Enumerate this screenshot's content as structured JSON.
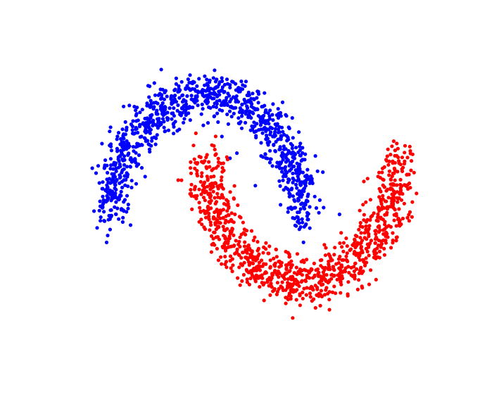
{
  "chart_data": {
    "type": "scatter",
    "title": "",
    "xlabel": "",
    "ylabel": "",
    "xlim": [
      -1.5,
      2.5
    ],
    "ylim": [
      -0.75,
      1.25
    ],
    "grid": false,
    "axes_visible": false,
    "legend": "none",
    "series": [
      {
        "color": "#0000ff",
        "shape": "upper-moon",
        "center": [
          0.0,
          0.0
        ],
        "radius": 1.0,
        "angle_range_deg": [
          0,
          180
        ],
        "count": 1000,
        "noise_std": 0.1,
        "points": [
          [
            1.0,
            0.0
          ],
          [
            0.95,
            0.31
          ],
          [
            0.81,
            0.59
          ],
          [
            0.59,
            0.81
          ],
          [
            0.31,
            0.95
          ],
          [
            0.0,
            1.0
          ],
          [
            -0.31,
            0.95
          ],
          [
            -0.59,
            0.81
          ],
          [
            -0.81,
            0.59
          ],
          [
            -0.95,
            0.31
          ],
          [
            -1.0,
            0.0
          ]
        ]
      },
      {
        "color": "#ff0000",
        "shape": "lower-moon",
        "center": [
          1.0,
          0.5
        ],
        "radius": 1.0,
        "angle_range_deg": [
          180,
          360
        ],
        "count": 1000,
        "noise_std": 0.1,
        "points": [
          [
            0.0,
            0.5
          ],
          [
            0.05,
            0.19
          ],
          [
            0.19,
            -0.09
          ],
          [
            0.41,
            -0.31
          ],
          [
            0.69,
            -0.45
          ],
          [
            1.0,
            -0.5
          ],
          [
            1.31,
            -0.45
          ],
          [
            1.59,
            -0.31
          ],
          [
            1.81,
            -0.09
          ],
          [
            1.95,
            0.19
          ],
          [
            2.0,
            0.5
          ]
        ]
      }
    ]
  }
}
